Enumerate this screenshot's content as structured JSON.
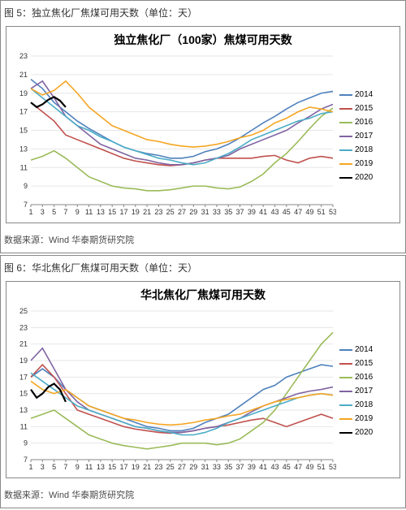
{
  "figure5": {
    "caption": "图 5：独立焦化厂焦煤可用天数（单位：天）",
    "source": "数据来源：Wind 华泰期货研究院",
    "chart": {
      "type": "line",
      "title": "独立焦化厂（100家）焦煤可用天数",
      "xlim": [
        1,
        53
      ],
      "ylim": [
        7,
        23
      ],
      "xtick_step": 2,
      "ytick_step": 2,
      "title_fontsize": 14,
      "label_fontsize": 9,
      "background_color": "#ffffff",
      "grid_color": "#e6e6e6",
      "series": [
        {
          "name": "2014",
          "color": "#4f81bd",
          "width": 1.6,
          "x": [
            1,
            3,
            5,
            7,
            9,
            11,
            13,
            15,
            17,
            19,
            21,
            23,
            25,
            27,
            29,
            31,
            33,
            35,
            37,
            39,
            41,
            43,
            45,
            47,
            49,
            51,
            53
          ],
          "y": [
            20.5,
            19.5,
            18.0,
            17.0,
            16.0,
            15.2,
            14.5,
            13.8,
            13.2,
            12.8,
            12.5,
            12.3,
            12.0,
            12.0,
            12.2,
            12.7,
            13.0,
            13.5,
            14.2,
            15.0,
            15.8,
            16.5,
            17.3,
            18.0,
            18.5,
            19.0,
            19.2
          ]
        },
        {
          "name": "2015",
          "color": "#c0504d",
          "width": 1.6,
          "x": [
            1,
            3,
            5,
            7,
            9,
            11,
            13,
            15,
            17,
            19,
            21,
            23,
            25,
            27,
            29,
            31,
            33,
            35,
            37,
            39,
            41,
            43,
            45,
            47,
            49,
            51,
            53
          ],
          "y": [
            18.0,
            17.0,
            16.0,
            14.5,
            14.0,
            13.5,
            13.0,
            12.5,
            12.0,
            11.7,
            11.5,
            11.3,
            11.2,
            11.3,
            11.5,
            11.8,
            12.0,
            12.0,
            12.0,
            12.0,
            12.2,
            12.3,
            11.8,
            11.5,
            12.0,
            12.2,
            12.0
          ]
        },
        {
          "name": "2016",
          "color": "#9bbb59",
          "width": 1.6,
          "x": [
            1,
            3,
            5,
            7,
            9,
            11,
            13,
            15,
            17,
            19,
            21,
            23,
            25,
            27,
            29,
            31,
            33,
            35,
            37,
            39,
            41,
            43,
            45,
            47,
            49,
            51,
            53
          ],
          "y": [
            11.8,
            12.2,
            12.8,
            12.0,
            11.0,
            10.0,
            9.5,
            9.0,
            8.8,
            8.7,
            8.5,
            8.5,
            8.6,
            8.8,
            9.0,
            9.0,
            8.8,
            8.7,
            8.9,
            9.5,
            10.3,
            11.5,
            12.5,
            13.8,
            15.2,
            16.5,
            17.4
          ]
        },
        {
          "name": "2017",
          "color": "#8064a2",
          "width": 1.6,
          "x": [
            1,
            3,
            5,
            7,
            9,
            11,
            13,
            15,
            17,
            19,
            21,
            23,
            25,
            27,
            29,
            31,
            33,
            35,
            37,
            39,
            41,
            43,
            45,
            47,
            49,
            51,
            53
          ],
          "y": [
            19.5,
            20.3,
            18.5,
            16.5,
            15.5,
            14.5,
            13.5,
            13.0,
            12.5,
            12.0,
            11.8,
            11.5,
            11.3,
            11.3,
            11.5,
            11.8,
            12.0,
            12.3,
            13.0,
            13.5,
            14.0,
            14.5,
            15.0,
            15.8,
            16.5,
            17.3,
            17.8
          ]
        },
        {
          "name": "2018",
          "color": "#4bacc6",
          "width": 1.6,
          "x": [
            1,
            3,
            5,
            7,
            9,
            11,
            13,
            15,
            17,
            19,
            21,
            23,
            25,
            27,
            29,
            31,
            33,
            35,
            37,
            39,
            41,
            43,
            45,
            47,
            49,
            51,
            53
          ],
          "y": [
            19.5,
            18.5,
            17.5,
            16.5,
            15.5,
            15.0,
            14.3,
            13.8,
            13.2,
            12.8,
            12.4,
            12.0,
            11.8,
            11.5,
            11.3,
            11.5,
            12.0,
            12.5,
            13.2,
            14.0,
            14.5,
            15.0,
            15.5,
            16.0,
            16.3,
            16.8,
            17.0
          ]
        },
        {
          "name": "2019",
          "color": "#f5a623",
          "width": 1.6,
          "x": [
            1,
            3,
            5,
            7,
            9,
            11,
            13,
            15,
            17,
            19,
            21,
            23,
            25,
            27,
            29,
            31,
            33,
            35,
            37,
            39,
            41,
            43,
            45,
            47,
            49,
            51,
            53
          ],
          "y": [
            19.5,
            18.8,
            19.3,
            20.3,
            19.0,
            17.5,
            16.5,
            15.5,
            15.0,
            14.5,
            14.0,
            13.8,
            13.5,
            13.3,
            13.2,
            13.3,
            13.5,
            13.8,
            14.2,
            14.5,
            15.0,
            15.8,
            16.3,
            17.0,
            17.5,
            17.3,
            17.0
          ]
        },
        {
          "name": "2020",
          "color": "#000000",
          "width": 2.2,
          "x": [
            1,
            2,
            3,
            4,
            5,
            6,
            7
          ],
          "y": [
            18.0,
            17.5,
            17.8,
            18.3,
            18.6,
            18.2,
            17.5
          ]
        }
      ],
      "legend_position": "right"
    }
  },
  "figure6": {
    "caption": "图 6：华北焦化厂焦煤可用天数（单位：天）",
    "source": "数据来源：Wind 华泰期货研究院",
    "chart": {
      "type": "line",
      "title": "华北焦化厂焦煤可用天数",
      "xlim": [
        1,
        53
      ],
      "ylim": [
        7,
        25
      ],
      "xtick_step": 2,
      "ytick_step": 2,
      "title_fontsize": 14,
      "label_fontsize": 9,
      "background_color": "#ffffff",
      "grid_color": "#e6e6e6",
      "series": [
        {
          "name": "2014",
          "color": "#4f81bd",
          "width": 1.6,
          "x": [
            1,
            3,
            5,
            7,
            9,
            11,
            13,
            15,
            17,
            19,
            21,
            23,
            25,
            27,
            29,
            31,
            33,
            35,
            37,
            39,
            41,
            43,
            45,
            47,
            49,
            51,
            53
          ],
          "y": [
            17.0,
            18.0,
            17.0,
            15.5,
            14.5,
            13.5,
            13.0,
            12.5,
            12.0,
            11.5,
            11.0,
            10.8,
            10.5,
            10.5,
            10.8,
            11.5,
            12.0,
            12.5,
            13.5,
            14.5,
            15.5,
            16.0,
            17.0,
            17.5,
            18.0,
            18.5,
            18.3
          ]
        },
        {
          "name": "2015",
          "color": "#c0504d",
          "width": 1.6,
          "x": [
            1,
            3,
            5,
            7,
            9,
            11,
            13,
            15,
            17,
            19,
            21,
            23,
            25,
            27,
            29,
            31,
            33,
            35,
            37,
            39,
            41,
            43,
            45,
            47,
            49,
            51,
            53
          ],
          "y": [
            17.0,
            18.5,
            17.0,
            15.0,
            13.0,
            12.5,
            12.0,
            11.5,
            11.0,
            10.7,
            10.5,
            10.3,
            10.2,
            10.3,
            10.5,
            10.8,
            11.0,
            11.2,
            11.5,
            11.8,
            12.0,
            11.5,
            11.0,
            11.5,
            12.0,
            12.5,
            12.0
          ]
        },
        {
          "name": "2016",
          "color": "#9bbb59",
          "width": 1.6,
          "x": [
            1,
            3,
            5,
            7,
            9,
            11,
            13,
            15,
            17,
            19,
            21,
            23,
            25,
            27,
            29,
            31,
            33,
            35,
            37,
            39,
            41,
            43,
            45,
            47,
            49,
            51,
            53
          ],
          "y": [
            12.0,
            12.5,
            13.0,
            12.0,
            11.0,
            10.0,
            9.5,
            9.0,
            8.7,
            8.5,
            8.3,
            8.5,
            8.7,
            9.0,
            9.0,
            9.0,
            8.8,
            9.0,
            9.5,
            10.5,
            11.5,
            13.0,
            15.0,
            17.0,
            19.0,
            21.0,
            22.4
          ]
        },
        {
          "name": "2017",
          "color": "#8064a2",
          "width": 1.6,
          "x": [
            1,
            3,
            5,
            7,
            9,
            11,
            13,
            15,
            17,
            19,
            21,
            23,
            25,
            27,
            29,
            31,
            33,
            35,
            37,
            39,
            41,
            43,
            45,
            47,
            49,
            51,
            53
          ],
          "y": [
            19.0,
            20.5,
            18.0,
            15.5,
            14.0,
            13.0,
            12.5,
            12.0,
            11.5,
            11.0,
            10.8,
            10.5,
            10.3,
            10.3,
            10.5,
            10.8,
            11.0,
            11.5,
            12.0,
            12.8,
            13.5,
            14.0,
            14.5,
            15.0,
            15.3,
            15.5,
            15.8
          ]
        },
        {
          "name": "2018",
          "color": "#4bacc6",
          "width": 1.6,
          "x": [
            1,
            3,
            5,
            7,
            9,
            11,
            13,
            15,
            17,
            19,
            21,
            23,
            25,
            27,
            29,
            31,
            33,
            35,
            37,
            39,
            41,
            43,
            45,
            47,
            49,
            51,
            53
          ],
          "y": [
            17.5,
            16.5,
            15.5,
            14.5,
            13.5,
            13.0,
            12.5,
            12.0,
            11.5,
            11.0,
            10.8,
            10.5,
            10.3,
            10.0,
            10.0,
            10.3,
            10.8,
            11.5,
            12.0,
            12.5,
            13.0,
            13.5,
            14.0,
            14.5,
            14.8,
            15.0,
            14.8
          ]
        },
        {
          "name": "2019",
          "color": "#f5a623",
          "width": 1.6,
          "x": [
            1,
            3,
            5,
            7,
            9,
            11,
            13,
            15,
            17,
            19,
            21,
            23,
            25,
            27,
            29,
            31,
            33,
            35,
            37,
            39,
            41,
            43,
            45,
            47,
            49,
            51,
            53
          ],
          "y": [
            16.5,
            15.5,
            15.0,
            15.5,
            14.5,
            13.5,
            13.0,
            12.5,
            12.0,
            11.8,
            11.5,
            11.3,
            11.2,
            11.3,
            11.5,
            11.8,
            12.0,
            12.3,
            12.5,
            13.0,
            13.5,
            14.0,
            14.3,
            14.5,
            14.8,
            15.0,
            14.8
          ]
        },
        {
          "name": "2020",
          "color": "#000000",
          "width": 2.2,
          "x": [
            1,
            2,
            3,
            4,
            5,
            6,
            7
          ],
          "y": [
            15.5,
            14.5,
            15.0,
            15.8,
            16.2,
            15.5,
            14.0
          ]
        }
      ],
      "legend_position": "right"
    }
  }
}
